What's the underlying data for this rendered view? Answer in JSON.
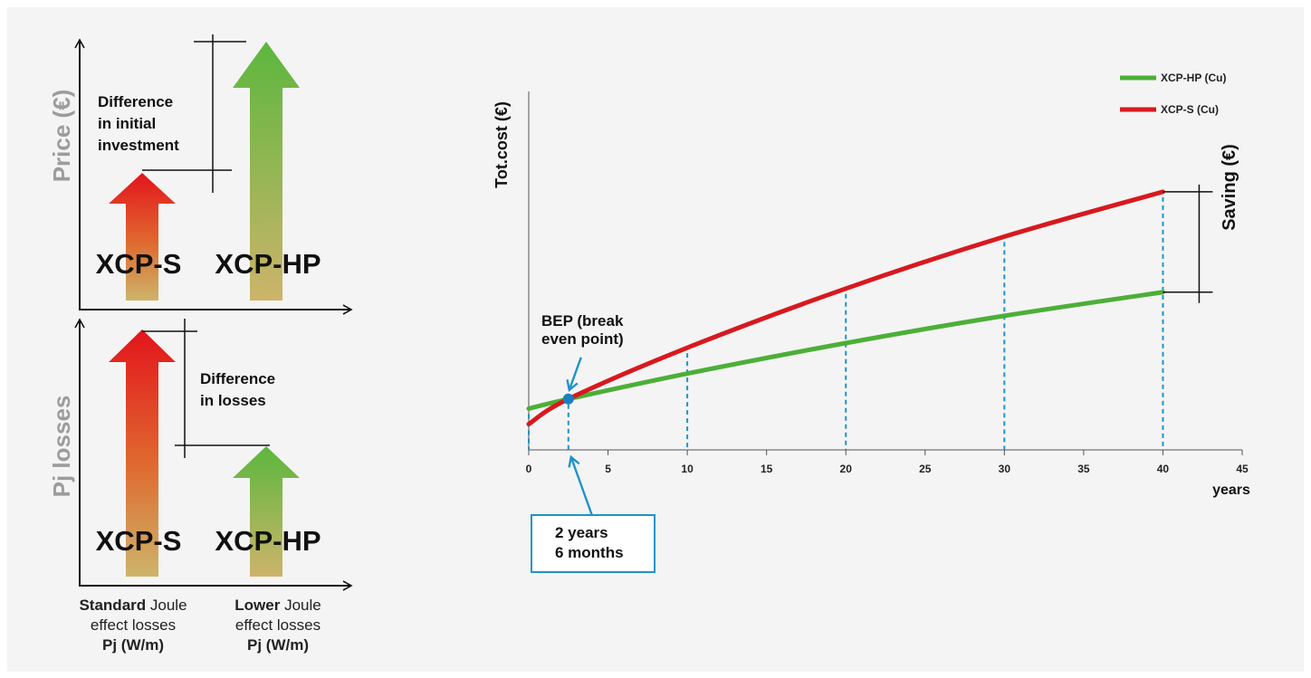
{
  "left_panel": {
    "price_axis_label": "Price (€)",
    "losses_axis_label": "Pj losses",
    "top": {
      "annotation_lines": [
        "Difference",
        "in initial",
        "investment"
      ],
      "label_s": "XCP-S",
      "label_hp": "XCP-HP"
    },
    "bottom": {
      "annotation_lines": [
        "Difference",
        "in losses"
      ],
      "label_s": "XCP-S",
      "label_hp": "XCP-HP"
    },
    "caption_s": {
      "bold": "Standard",
      "rest": " Joule",
      "line2": "effect losses",
      "line3": "Pj (W/m)"
    },
    "caption_hp": {
      "bold": "Lower",
      "rest": " Joule",
      "line2": "effect losses",
      "line3": "Pj (W/m)"
    }
  },
  "chart_data": {
    "type": "line",
    "ylabel": "Tot.cost (€)",
    "xlabel": "years",
    "xlim": [
      0,
      45
    ],
    "x_ticks": [
      0,
      5,
      10,
      15,
      20,
      25,
      30,
      35,
      40,
      45
    ],
    "legend_position": "top-right",
    "series": [
      {
        "name": "XCP-HP (Cu)",
        "color": "#4caf37",
        "x": [
          0,
          2.5,
          10,
          20,
          30,
          40
        ],
        "y": [
          11.5,
          14.2,
          21.3,
          29.8,
          37.4,
          44.0
        ]
      },
      {
        "name": "XCP-S (Cu)",
        "color": "#d7191f",
        "x": [
          0,
          2.5,
          10,
          20,
          30,
          40
        ],
        "y": [
          7.2,
          14.2,
          28.5,
          45.0,
          59.5,
          72.0
        ]
      }
    ],
    "dashed_year_markers": [
      0,
      2.5,
      10,
      20,
      30,
      40
    ],
    "bep_label_lines": [
      "BEP (break",
      "even point)"
    ],
    "bep_box_lines": [
      "2 years",
      "6 months"
    ],
    "saving_label": "Saving (€)"
  }
}
